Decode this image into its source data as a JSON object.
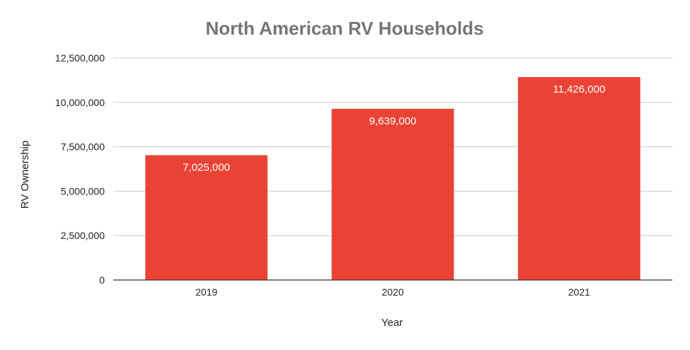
{
  "chart_data": {
    "type": "bar",
    "title": "North American RV Households",
    "xlabel": "Year",
    "ylabel": "RV Ownership",
    "categories": [
      "2019",
      "2020",
      "2021"
    ],
    "values": [
      7025000,
      9639000,
      11426000
    ],
    "data_labels": [
      "7,025,000",
      "9,639,000",
      "11,426,000"
    ],
    "y_ticks": [
      0,
      2500000,
      5000000,
      7500000,
      10000000,
      12500000
    ],
    "y_tick_labels": [
      "0",
      "2,500,000",
      "5,000,000",
      "7,500,000",
      "10,000,000",
      "12,500,000"
    ],
    "ylim": [
      0,
      12500000
    ],
    "grid": true,
    "legend": "none",
    "colors": {
      "bar": "#ea4335",
      "grid": "#cccccc",
      "axis": "#333333",
      "title": "#757575"
    }
  }
}
